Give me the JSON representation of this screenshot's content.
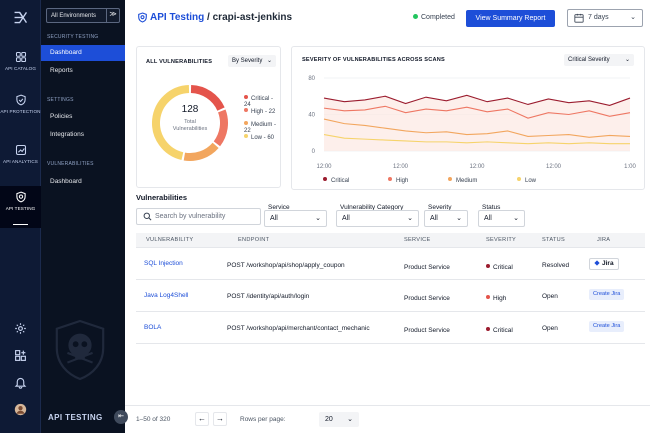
{
  "rail": {
    "items": [
      {
        "icon": "grid-icon",
        "label": "API CATALOG"
      },
      {
        "icon": "shield-check-icon",
        "label": "API PROTECTION"
      },
      {
        "icon": "analytics-icon",
        "label": "API ANALYTICS"
      },
      {
        "icon": "api-testing-icon",
        "label": "API TESTING",
        "active": true
      }
    ],
    "bottom_icons": [
      "settings-icon",
      "apps-add-icon",
      "bell-icon",
      "avatar"
    ]
  },
  "panel": {
    "env_label": "All Environments",
    "env_toggle": "≫",
    "sections": [
      {
        "title": "SECURITY TESTING",
        "items": [
          "Dashboard",
          "Reports"
        ]
      },
      {
        "title": "SETTINGS",
        "items": [
          "Policies",
          "Integrations"
        ]
      },
      {
        "title": "VULNERABILITIES",
        "items": [
          "Dashboard"
        ]
      }
    ],
    "footer": "API TESTING",
    "collapse": "⇤"
  },
  "header": {
    "breadcrumb_link": "API Testing",
    "breadcrumb_sep": "/",
    "breadcrumb_current": "crapi-ast-jenkins",
    "status": "Completed",
    "summary_button": "View Summary Report",
    "date_range": "7 days"
  },
  "all_vulns": {
    "title": "ALL VULNERABILITIES",
    "group_by": "By Severity",
    "total": "128",
    "total_label_1": "Total",
    "total_label_2": "Vulnerabilities",
    "legend": [
      {
        "label": "Critical - 24",
        "color": "#e4544b"
      },
      {
        "label": "High - 22",
        "color": "#ee7763"
      },
      {
        "label": "Medium - 22",
        "color": "#f2a65e"
      },
      {
        "label": "Low - 60",
        "color": "#f6d36b"
      }
    ]
  },
  "chart_data": {
    "type": "line",
    "title": "SEVERITY OF VULNERABILITIES ACROSS SCANS",
    "filter": "Critical Severity",
    "x_ticks": [
      "12:00",
      "12:00",
      "12:00",
      "12:00",
      "1:00"
    ],
    "y_ticks": [
      "80",
      "40",
      "0"
    ],
    "ylim": [
      0,
      80
    ],
    "series": [
      {
        "name": "Critical",
        "color": "#9b1c2e",
        "values": [
          58,
          54,
          56,
          60,
          52,
          59,
          55,
          61,
          54,
          58,
          51,
          57,
          53,
          55,
          50,
          58
        ]
      },
      {
        "name": "High",
        "color": "#ee7763",
        "values": [
          47,
          44,
          45,
          49,
          42,
          46,
          44,
          48,
          43,
          46,
          36,
          42,
          40,
          44,
          38,
          42
        ]
      },
      {
        "name": "Medium",
        "color": "#f2a65e",
        "values": [
          35,
          30,
          28,
          25,
          22,
          20,
          21,
          18,
          19,
          22,
          16,
          17,
          18,
          15,
          17,
          16
        ]
      },
      {
        "name": "Low",
        "color": "#f6d36b",
        "values": [
          18,
          14,
          13,
          12,
          11,
          10,
          10,
          9,
          10,
          9,
          8,
          9,
          8,
          9,
          8,
          8
        ]
      }
    ]
  },
  "vulnerabilities": {
    "title": "Vulnerabilities",
    "search_placeholder": "Search by vulnerability",
    "filters": [
      {
        "label": "Service",
        "value": "All"
      },
      {
        "label": "Vulnerability Category",
        "value": "All"
      },
      {
        "label": "Severity",
        "value": "All"
      },
      {
        "label": "Status",
        "value": "All"
      }
    ],
    "columns": [
      "VULNERABILITY",
      "ENDPOINT",
      "SERVICE",
      "SEVERITY",
      "STATUS",
      "JIRA"
    ],
    "rows": [
      {
        "name": "SQL Injection",
        "endpoint": "POST /workshop/api/shop/apply_coupon",
        "service": "Product Service",
        "severity": "Critical",
        "sev_color": "#9b1c2e",
        "status": "Resolved",
        "jira": "Jira",
        "jira_type": "linked"
      },
      {
        "name": "Java Log4Shell",
        "endpoint": "POST /identity/api/auth/login",
        "service": "Product Service",
        "severity": "High",
        "sev_color": "#e4544b",
        "status": "Open",
        "jira": "Create Jira",
        "jira_type": "create"
      },
      {
        "name": "BOLA",
        "endpoint": "POST /workshop/api/merchant/contact_mechanic",
        "service": "Product Service",
        "severity": "Critical",
        "sev_color": "#9b1c2e",
        "status": "Open",
        "jira": "Create Jira",
        "jira_type": "create"
      }
    ]
  },
  "pagination": {
    "range": "1–50 of 320",
    "prev": "←",
    "next": "→",
    "rows_per_page_label": "Rows per page:",
    "rows_per_page": "20"
  }
}
